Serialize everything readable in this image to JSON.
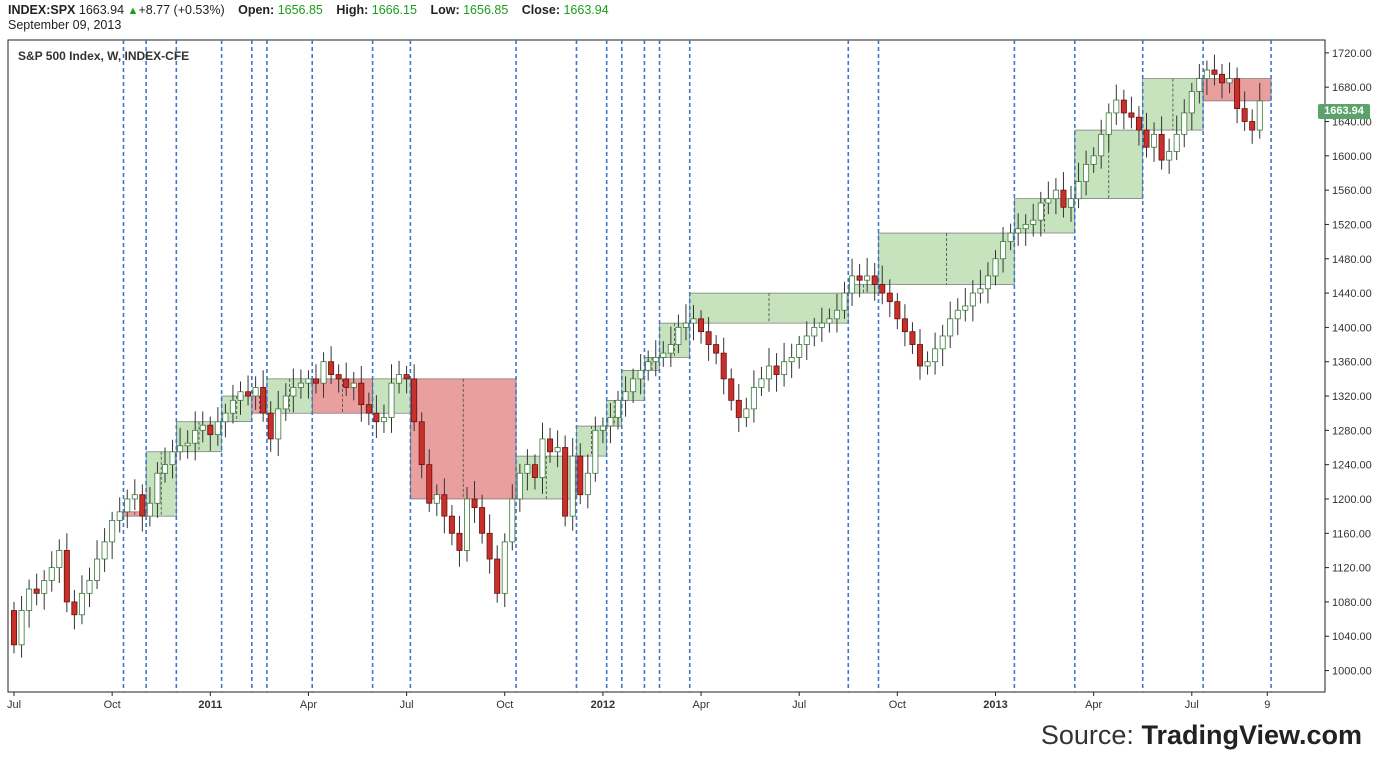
{
  "header": {
    "symbol": "INDEX:SPX",
    "last": "1663.94",
    "change_arrow": "▲",
    "change": "+8.77 (+0.53%)",
    "open_label": "Open:",
    "open": "1656.85",
    "high_label": "High:",
    "high": "1666.15",
    "low_label": "Low:",
    "low": "1656.85",
    "close_label": "Close:",
    "close": "1663.94",
    "date": "September 09, 2013"
  },
  "source": {
    "prefix": "Source: ",
    "brand": "TradingView.com"
  },
  "colors": {
    "up_candle": "#ffffff",
    "down_candle": "#c8302a",
    "up_box": "#c4e2bb",
    "down_box": "#e99a9a",
    "divider": "#3b78c9",
    "price_tag": "#5aa36b"
  },
  "chart_data": {
    "type": "candlestick",
    "title": "S&P 500 Index, W, INDEX-CFE",
    "current_price_label": "1663.94",
    "y_ticks": [
      "1000.00",
      "1040.00",
      "1080.00",
      "1120.00",
      "1160.00",
      "1200.00",
      "1240.00",
      "1280.00",
      "1320.00",
      "1360.00",
      "1400.00",
      "1440.00",
      "1480.00",
      "1520.00",
      "1560.00",
      "1600.00",
      "1640.00",
      "1680.00",
      "1720.00"
    ],
    "ylim": [
      975,
      1735
    ],
    "x_ticks": [
      {
        "label": "Jul",
        "week": 0,
        "bold": false
      },
      {
        "label": "Oct",
        "week": 13,
        "bold": false
      },
      {
        "label": "2011",
        "week": 26,
        "bold": true
      },
      {
        "label": "Apr",
        "week": 39,
        "bold": false
      },
      {
        "label": "Jul",
        "week": 52,
        "bold": false
      },
      {
        "label": "Oct",
        "week": 65,
        "bold": false
      },
      {
        "label": "2012",
        "week": 78,
        "bold": true
      },
      {
        "label": "Apr",
        "week": 91,
        "bold": false
      },
      {
        "label": "Jul",
        "week": 104,
        "bold": false
      },
      {
        "label": "Oct",
        "week": 117,
        "bold": false
      },
      {
        "label": "2013",
        "week": 130,
        "bold": true
      },
      {
        "label": "Apr",
        "week": 143,
        "bold": false
      },
      {
        "label": "Jul",
        "week": 156,
        "bold": false
      },
      {
        "label": "9",
        "week": 166,
        "bold": false
      }
    ],
    "closes": [
      1030,
      1070,
      1095,
      1090,
      1105,
      1120,
      1140,
      1080,
      1065,
      1090,
      1105,
      1130,
      1150,
      1175,
      1185,
      1200,
      1205,
      1180,
      1195,
      1230,
      1240,
      1255,
      1262,
      1265,
      1280,
      1286,
      1275,
      1290,
      1300,
      1315,
      1325,
      1320,
      1330,
      1300,
      1270,
      1305,
      1320,
      1330,
      1335,
      1340,
      1335,
      1360,
      1345,
      1340,
      1330,
      1335,
      1310,
      1300,
      1290,
      1295,
      1335,
      1345,
      1340,
      1290,
      1240,
      1195,
      1205,
      1180,
      1160,
      1140,
      1200,
      1190,
      1160,
      1130,
      1090,
      1150,
      1200,
      1230,
      1240,
      1225,
      1270,
      1255,
      1260,
      1180,
      1250,
      1205,
      1230,
      1280,
      1285,
      1295,
      1315,
      1325,
      1340,
      1350,
      1360,
      1365,
      1370,
      1380,
      1400,
      1405,
      1410,
      1395,
      1380,
      1370,
      1340,
      1315,
      1295,
      1305,
      1330,
      1340,
      1355,
      1345,
      1360,
      1365,
      1380,
      1390,
      1400,
      1405,
      1410,
      1420,
      1440,
      1460,
      1455,
      1460,
      1450,
      1440,
      1430,
      1410,
      1395,
      1380,
      1355,
      1360,
      1375,
      1390,
      1410,
      1420,
      1425,
      1440,
      1445,
      1460,
      1480,
      1500,
      1510,
      1515,
      1520,
      1525,
      1545,
      1550,
      1560,
      1540,
      1550,
      1570,
      1590,
      1600,
      1625,
      1650,
      1665,
      1650,
      1645,
      1630,
      1610,
      1625,
      1595,
      1605,
      1625,
      1650,
      1675,
      1690,
      1700,
      1695,
      1685,
      1690,
      1655,
      1640,
      1630,
      1664
    ]
  }
}
